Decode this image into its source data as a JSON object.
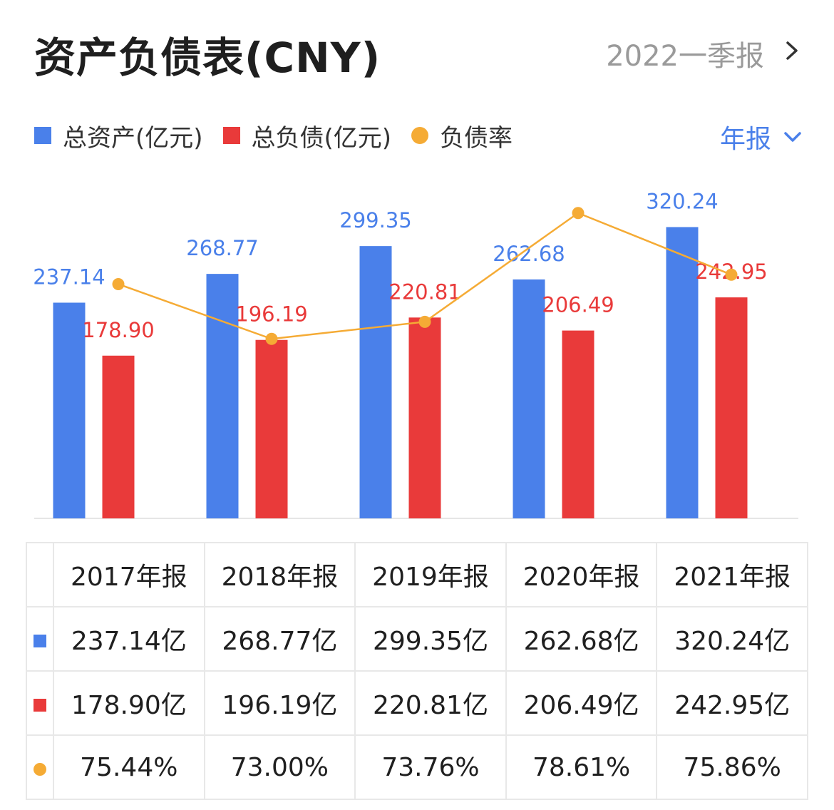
{
  "header": {
    "title": "资产负债表(CNY)",
    "period": "2022一季报"
  },
  "legend": [
    {
      "label": "总资产(亿元)",
      "color": "#4a80ea",
      "shape": "square"
    },
    {
      "label": "总负债(亿元)",
      "color": "#e93a3a",
      "shape": "square"
    },
    {
      "label": "负债率",
      "color": "#f5ab35",
      "shape": "dot"
    }
  ],
  "period_select": {
    "label": "年报",
    "color": "#4a80ea"
  },
  "chart_data": {
    "type": "bar",
    "categories": [
      "2017年报",
      "2018年报",
      "2019年报",
      "2020年报",
      "2021年报"
    ],
    "series": [
      {
        "name": "总资产(亿元)",
        "type": "bar",
        "color": "#4a80ea",
        "values": [
          237.14,
          268.77,
          299.35,
          262.68,
          320.24
        ],
        "labels": [
          "237.14",
          "268.77",
          "299.35",
          "262.68",
          "320.24"
        ]
      },
      {
        "name": "总负债(亿元)",
        "type": "bar",
        "color": "#e93a3a",
        "values": [
          178.9,
          196.19,
          220.81,
          206.49,
          242.95
        ],
        "labels": [
          "178.90",
          "196.19",
          "220.81",
          "206.49",
          "242.95"
        ]
      },
      {
        "name": "负债率",
        "type": "line",
        "color": "#f5ab35",
        "axis": "right",
        "values": [
          75.44,
          73.0,
          73.76,
          78.61,
          75.86
        ]
      }
    ],
    "ylim": [
      0,
      370
    ],
    "ylim_right": [
      65,
      80
    ]
  },
  "table": {
    "header": [
      "2017年报",
      "2018年报",
      "2019年报",
      "2020年报",
      "2021年报"
    ],
    "rows": [
      {
        "marker": "square",
        "color": "#4a80ea",
        "cells": [
          "237.14亿",
          "268.77亿",
          "299.35亿",
          "262.68亿",
          "320.24亿"
        ]
      },
      {
        "marker": "square",
        "color": "#e93a3a",
        "cells": [
          "178.90亿",
          "196.19亿",
          "220.81亿",
          "206.49亿",
          "242.95亿"
        ]
      },
      {
        "marker": "dot",
        "color": "#f5ab35",
        "cells": [
          "75.44%",
          "73.00%",
          "73.76%",
          "78.61%",
          "75.86%"
        ]
      }
    ]
  }
}
